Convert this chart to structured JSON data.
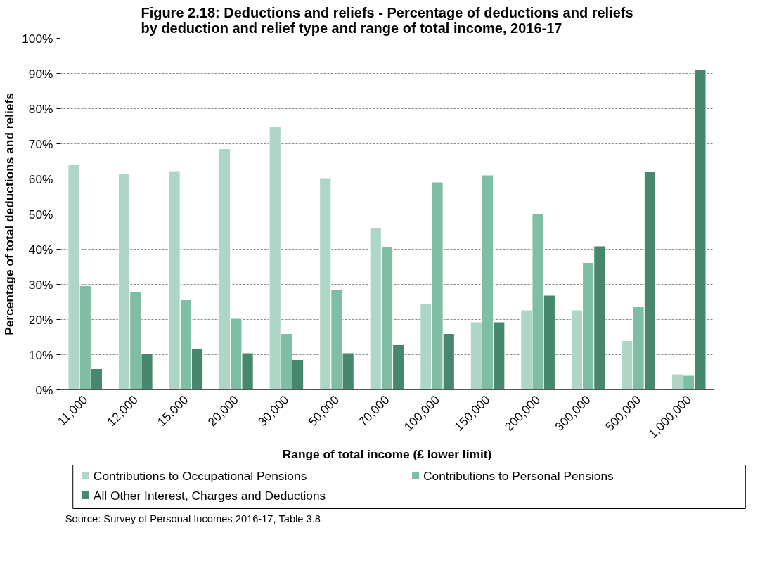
{
  "chart_data": {
    "type": "bar",
    "title": "Figure 2.18: Deductions and reliefs - Percentage of deductions and reliefs\nby deduction and relief type and range of total income, 2016-17",
    "xlabel": "Range of total income (£ lower limit)",
    "ylabel": "Percentage of total deductions and reliefs",
    "categories": [
      "11,000",
      "12,000",
      "15,000",
      "20,000",
      "30,000",
      "50,000",
      "70,000",
      "100,000",
      "150,000",
      "200,000",
      "300,000",
      "500,000",
      "1,000,000"
    ],
    "series": [
      {
        "name": "Contributions to Occupational Pensions",
        "color": "#aed6c6",
        "values": [
          64.0,
          61.5,
          62.3,
          68.6,
          75.0,
          60.3,
          46.2,
          24.6,
          19.3,
          22.7,
          22.7,
          14.0,
          4.5
        ]
      },
      {
        "name": "Contributions to Personal Pensions",
        "color": "#7fbda5",
        "values": [
          29.6,
          28.0,
          25.6,
          20.3,
          16.0,
          28.6,
          40.7,
          59.1,
          61.1,
          50.2,
          36.2,
          23.7,
          4.1
        ]
      },
      {
        "name": "All Other Interest, Charges and Deductions",
        "color": "#46876e",
        "values": [
          6.0,
          10.3,
          11.6,
          10.5,
          8.6,
          10.5,
          12.8,
          16.0,
          19.3,
          26.9,
          40.9,
          62.1,
          91.2
        ]
      }
    ],
    "ylim": [
      0,
      100
    ],
    "yticks": [
      {
        "value": 0,
        "label": "0%"
      },
      {
        "value": 10,
        "label": "10%"
      },
      {
        "value": 20,
        "label": "20%"
      },
      {
        "value": 30,
        "label": "30%"
      },
      {
        "value": 40,
        "label": "40%"
      },
      {
        "value": 50,
        "label": "50%"
      },
      {
        "value": 60,
        "label": "60%"
      },
      {
        "value": 70,
        "label": "70%"
      },
      {
        "value": 80,
        "label": "80%"
      },
      {
        "value": 90,
        "label": "90%"
      },
      {
        "value": 100,
        "label": "100%"
      }
    ],
    "grid": "y",
    "legend": "bottom",
    "annotations": [
      "Source: Survey of Personal Incomes 2016-17, Table 3.8"
    ]
  }
}
